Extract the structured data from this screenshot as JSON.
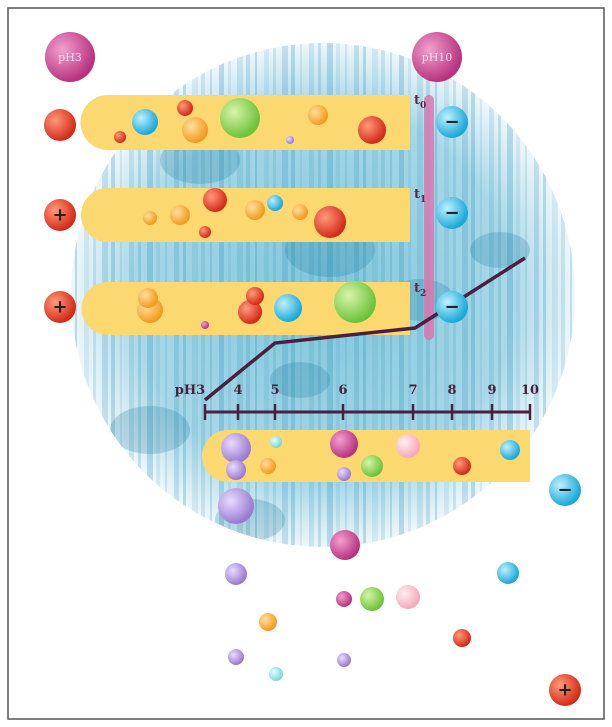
{
  "ph_labels": {
    "low": "pH3",
    "high": "pH10"
  },
  "time_labels": [
    {
      "base": "t",
      "sub": "0"
    },
    {
      "base": "t",
      "sub": "1"
    },
    {
      "base": "t",
      "sub": "2"
    }
  ],
  "ph_scale": {
    "start_label": "pH3",
    "ticks": [
      "4",
      "5",
      "6",
      "7",
      "8",
      "9",
      "10"
    ]
  }
}
